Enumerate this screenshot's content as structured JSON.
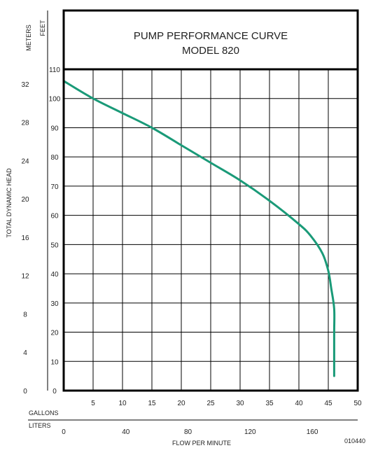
{
  "chart_data": {
    "type": "line",
    "title": "PUMP PERFORMANCE CURVE",
    "subtitle": "MODEL 820",
    "xlabel": "FLOW PER MINUTE",
    "ylabel": "TOTAL DYNAMIC HEAD",
    "x_units_primary": "GALLONS",
    "x_units_secondary": "LITERS",
    "y_units_primary": "FEET",
    "y_units_secondary": "METERS",
    "xlim": [
      0,
      50
    ],
    "ylim": [
      0,
      110
    ],
    "grid": true,
    "x_ticks": [
      "5",
      "10",
      "15",
      "20",
      "25",
      "30",
      "35",
      "40",
      "45",
      "50"
    ],
    "x_ticks_liters": [
      "0",
      "40",
      "80",
      "120",
      "160"
    ],
    "y_ticks_feet": [
      "10",
      "20",
      "30",
      "40",
      "50",
      "60",
      "70",
      "80",
      "90",
      "100",
      "110"
    ],
    "y_ticks_meters": [
      "0",
      "4",
      "8",
      "12",
      "16",
      "20",
      "24",
      "28",
      "32"
    ],
    "series": [
      {
        "color": "#1a9a78",
        "x": [
          0,
          5,
          10,
          15,
          20,
          25,
          30,
          35,
          40,
          42,
          44,
          45,
          45.5,
          46,
          46,
          46,
          46
        ],
        "y": [
          106,
          100,
          95,
          90,
          84,
          78,
          72,
          65,
          57,
          53,
          47,
          41,
          35,
          28,
          20,
          10,
          5
        ]
      }
    ]
  },
  "code_label": "010440"
}
